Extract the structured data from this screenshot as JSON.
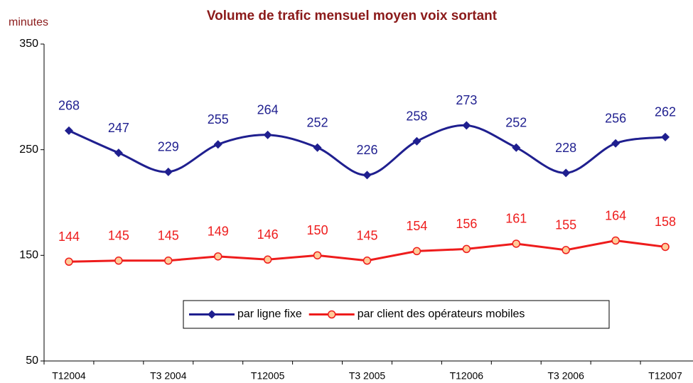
{
  "chart_data": {
    "type": "line",
    "title": "Volume de trafic mensuel moyen voix sortant",
    "y_label": "minutes",
    "categories": [
      "T12004",
      null,
      "T3 2004",
      null,
      "T12005",
      null,
      "T3 2005",
      null,
      "T12006",
      null,
      "T3 2006",
      null,
      "T12007"
    ],
    "series": [
      {
        "name": "par ligne fixe",
        "color": "#1f1f8f",
        "marker": "diamond",
        "smooth": true,
        "values": [
          268,
          247,
          229,
          255,
          264,
          252,
          226,
          258,
          273,
          252,
          228,
          256,
          262
        ]
      },
      {
        "name": "par client des opérateurs mobiles",
        "color": "#ee1c1c",
        "marker": "circle",
        "smooth": false,
        "values": [
          144,
          145,
          145,
          149,
          146,
          150,
          145,
          154,
          156,
          161,
          155,
          164,
          158
        ]
      }
    ],
    "ylim": [
      50,
      350
    ],
    "yticks": [
      50,
      150,
      250,
      350
    ],
    "grid": false
  }
}
